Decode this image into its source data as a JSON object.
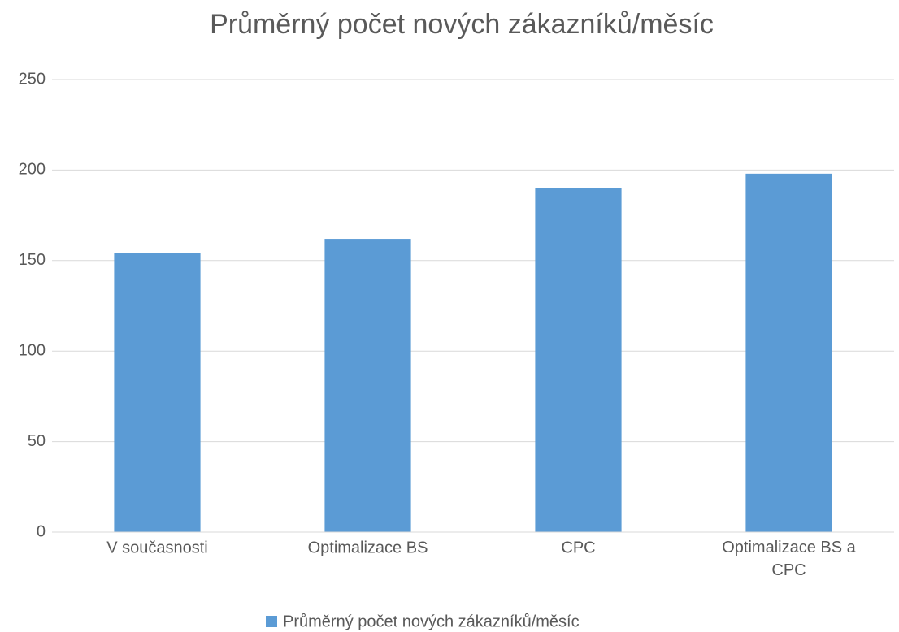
{
  "chart_data": {
    "type": "bar",
    "title": "Průměrný počet nových zákazníků/měsíc",
    "categories": [
      "V současnosti",
      "Optimalizace BS",
      "CPC",
      "Optimalizace BS a CPC"
    ],
    "series": [
      {
        "name": "Průměrný počet nových zákazníků/měsíc",
        "color": "#5b9bd5",
        "values": [
          154,
          162,
          190,
          198
        ]
      }
    ],
    "ylim": [
      0,
      250
    ],
    "yticks": [
      0,
      50,
      100,
      150,
      200,
      250
    ],
    "grid": true,
    "legend": "bottom"
  }
}
